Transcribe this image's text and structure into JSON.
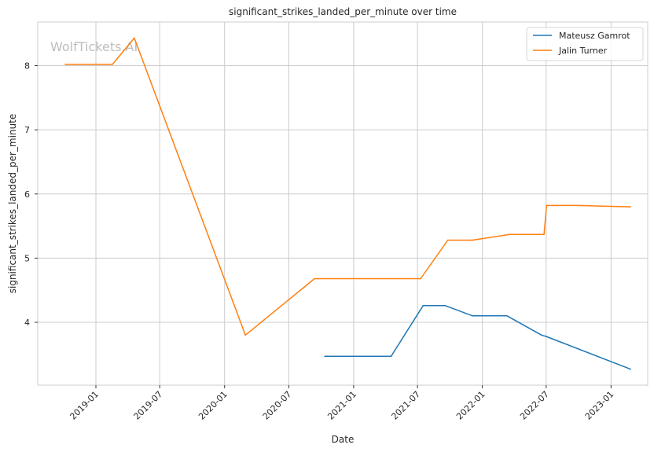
{
  "chart_data": {
    "type": "line",
    "title": "significant_strikes_landed_per_minute over time",
    "xlabel": "Date",
    "ylabel": "significant_strikes_landed_per_minute",
    "watermark": "WolfTickets.AI",
    "x_ticks": [
      "2019-01",
      "2019-07",
      "2020-01",
      "2020-07",
      "2021-01",
      "2021-07",
      "2022-01",
      "2022-07",
      "2023-01"
    ],
    "y_ticks": [
      4,
      5,
      6,
      7,
      8
    ],
    "xlim": [
      "2018-07-20",
      "2023-04-15"
    ],
    "ylim": [
      3.02,
      8.68
    ],
    "grid": true,
    "legend_position": "top-right",
    "series": [
      {
        "name": "Mateusz Gamrot",
        "color": "#1f77b4",
        "x": [
          "2020-10-11",
          "2021-04-17",
          "2021-07-17",
          "2021-09-18",
          "2021-12-04",
          "2022-03-12",
          "2022-06-18",
          "2022-07-01",
          "2023-02-25"
        ],
        "y": [
          3.47,
          3.47,
          4.26,
          4.26,
          4.1,
          4.1,
          3.8,
          3.78,
          3.27
        ]
      },
      {
        "name": "Jalin Turner",
        "color": "#ff7f0e",
        "x": [
          "2018-10-06",
          "2019-02-17",
          "2019-04-20",
          "2020-02-29",
          "2020-09-12",
          "2021-07-10",
          "2021-09-25",
          "2021-12-04",
          "2022-03-19",
          "2022-06-25",
          "2022-07-02",
          "2022-10-01",
          "2023-02-25"
        ],
        "y": [
          8.02,
          8.02,
          8.43,
          3.8,
          4.68,
          4.68,
          5.28,
          5.28,
          5.37,
          5.37,
          5.82,
          5.82,
          5.8
        ]
      }
    ]
  }
}
